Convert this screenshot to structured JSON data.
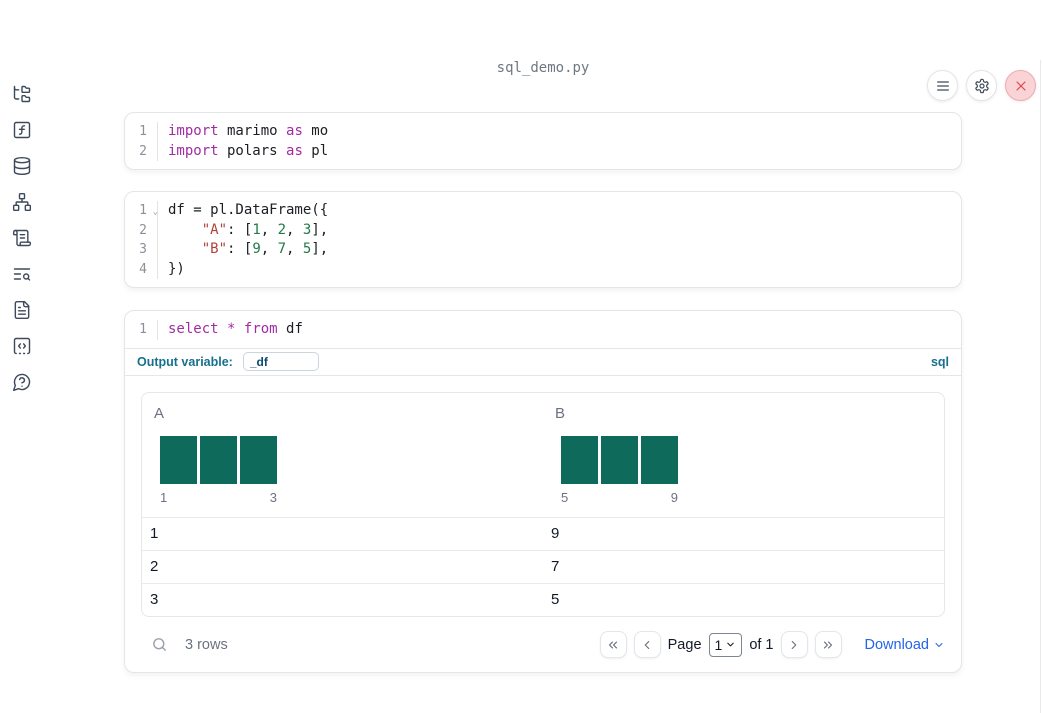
{
  "app": {
    "title": "sql_demo.py"
  },
  "colors": {
    "accent_teal": "#17708f",
    "histogram_bar": "#0e6a5b",
    "keyword": "#a32ba3",
    "string": "#b0423a",
    "number": "#21794a",
    "link_blue": "#2563eb",
    "close_red": "#d9494f"
  },
  "sidebar": {
    "items": [
      {
        "icon": "file-tree-icon",
        "name": "file-explorer"
      },
      {
        "icon": "function-square-icon",
        "name": "variables"
      },
      {
        "icon": "database-icon",
        "name": "data-sources"
      },
      {
        "icon": "network-icon",
        "name": "dependencies"
      },
      {
        "icon": "scroll-icon",
        "name": "logs"
      },
      {
        "icon": "list-search-icon",
        "name": "search"
      },
      {
        "icon": "document-icon",
        "name": "documentation"
      },
      {
        "icon": "code-snippet-icon",
        "name": "snippets"
      },
      {
        "icon": "help-bubble-icon",
        "name": "help"
      }
    ]
  },
  "topbar": {
    "buttons": [
      {
        "icon": "menu-icon",
        "name": "menu"
      },
      {
        "icon": "gear-icon",
        "name": "settings"
      },
      {
        "icon": "close-icon",
        "name": "shutdown"
      }
    ]
  },
  "cells": [
    {
      "type": "python",
      "lines": [
        {
          "num": "1",
          "tokens": [
            {
              "t": "kw",
              "v": "import"
            },
            {
              "t": "pl",
              "v": " marimo "
            },
            {
              "t": "kw",
              "v": "as"
            },
            {
              "t": "pl",
              "v": " mo"
            }
          ]
        },
        {
          "num": "2",
          "tokens": [
            {
              "t": "kw",
              "v": "import"
            },
            {
              "t": "pl",
              "v": " polars "
            },
            {
              "t": "kw",
              "v": "as"
            },
            {
              "t": "pl",
              "v": " pl"
            }
          ]
        }
      ]
    },
    {
      "type": "python",
      "lines": [
        {
          "num": "1",
          "fold": true,
          "tokens": [
            {
              "t": "pl",
              "v": "df = pl.DataFrame({"
            }
          ]
        },
        {
          "num": "2",
          "tokens": [
            {
              "t": "pl",
              "v": "    "
            },
            {
              "t": "str",
              "v": "\"A\""
            },
            {
              "t": "pl",
              "v": ": ["
            },
            {
              "t": "num",
              "v": "1"
            },
            {
              "t": "pl",
              "v": ", "
            },
            {
              "t": "num",
              "v": "2"
            },
            {
              "t": "pl",
              "v": ", "
            },
            {
              "t": "num",
              "v": "3"
            },
            {
              "t": "pl",
              "v": "],"
            }
          ]
        },
        {
          "num": "3",
          "tokens": [
            {
              "t": "pl",
              "v": "    "
            },
            {
              "t": "str",
              "v": "\"B\""
            },
            {
              "t": "pl",
              "v": ": ["
            },
            {
              "t": "num",
              "v": "9"
            },
            {
              "t": "pl",
              "v": ", "
            },
            {
              "t": "num",
              "v": "7"
            },
            {
              "t": "pl",
              "v": ", "
            },
            {
              "t": "num",
              "v": "5"
            },
            {
              "t": "pl",
              "v": "],"
            }
          ]
        },
        {
          "num": "4",
          "tokens": [
            {
              "t": "pl",
              "v": "})"
            }
          ]
        }
      ]
    },
    {
      "type": "sql",
      "lines": [
        {
          "num": "1",
          "tokens": [
            {
              "t": "kw",
              "v": "select"
            },
            {
              "t": "pl",
              "v": " "
            },
            {
              "t": "kw",
              "v": "*"
            },
            {
              "t": "pl",
              "v": " "
            },
            {
              "t": "kw",
              "v": "from"
            },
            {
              "t": "pl",
              "v": " df"
            }
          ]
        }
      ]
    }
  ],
  "sql_footer": {
    "output_variable_label": "Output variable:",
    "output_variable_value": "_df",
    "language_badge": "sql"
  },
  "table": {
    "columns": [
      {
        "name": "A",
        "histogram": {
          "bar_count": 3,
          "bar_values": [
            1,
            1,
            1
          ],
          "min_label": "1",
          "max_label": "3"
        }
      },
      {
        "name": "B",
        "histogram": {
          "bar_count": 3,
          "bar_values": [
            1,
            1,
            1
          ],
          "min_label": "5",
          "max_label": "9"
        }
      }
    ],
    "rows": [
      [
        "1",
        "9"
      ],
      [
        "2",
        "7"
      ],
      [
        "3",
        "5"
      ]
    ],
    "footer": {
      "row_count": "3 rows",
      "page_label": "Page",
      "page_value": "1",
      "of_label": "of 1",
      "download_label": "Download"
    }
  }
}
